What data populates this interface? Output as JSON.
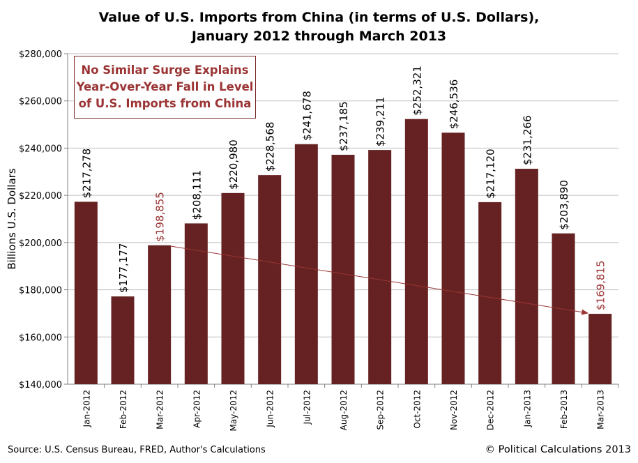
{
  "title": {
    "line1": "Value of U.S. Imports from China (in terms of U.S. Dollars),",
    "line2": "January 2012 through March 2013"
  },
  "annotation": {
    "line1": "No Similar Surge Explains",
    "line2": "Year-Over-Year Fall in Level",
    "line3": "of U.S. Imports from China"
  },
  "footer": {
    "source": "Source: U.S. Census Bureau, FRED, Author's Calculations",
    "copyright": "© Political Calculations 2013"
  },
  "chart_data": {
    "type": "bar",
    "title": "Value of U.S. Imports from China (in terms of U.S. Dollars), January 2012 through March 2013",
    "xlabel": "",
    "ylabel": "Billions U.S. Dollars",
    "ylim": [
      140000,
      280000
    ],
    "yticks": [
      140000,
      160000,
      180000,
      200000,
      220000,
      240000,
      260000,
      280000
    ],
    "ytick_labels": [
      "$140,000",
      "$160,000",
      "$180,000",
      "$200,000",
      "$220,000",
      "$240,000",
      "$260,000",
      "$280,000"
    ],
    "grid": true,
    "categories": [
      "Jan-2012",
      "Feb-2012",
      "Mar-2012",
      "Apr-2012",
      "May-2012",
      "Jun-2012",
      "Jul-2012",
      "Aug-2012",
      "Sep-2012",
      "Oct-2012",
      "Nov-2012",
      "Dec-2012",
      "Jan-2013",
      "Feb-2013",
      "Mar-2013"
    ],
    "values": [
      217278,
      177177,
      198855,
      208111,
      220980,
      228568,
      241678,
      237185,
      239211,
      252321,
      246536,
      217120,
      231266,
      203890,
      169815
    ],
    "data_labels": [
      "$217,278",
      "$177,177",
      "$198,855",
      "$208,111",
      "$220,980",
      "$228,568",
      "$241,678",
      "$237,185",
      "$239,211",
      "$252,321",
      "$246,536",
      "$217,120",
      "$231,266",
      "$203,890",
      "$169,815"
    ],
    "highlight_indices": [
      2,
      14
    ],
    "arrow": {
      "from_index": 2,
      "to_index": 14
    },
    "colors": {
      "bar": "#662222",
      "highlight_label": "#9b3434",
      "arrow": "#9b3434",
      "grid": "#bfbfbf"
    }
  }
}
